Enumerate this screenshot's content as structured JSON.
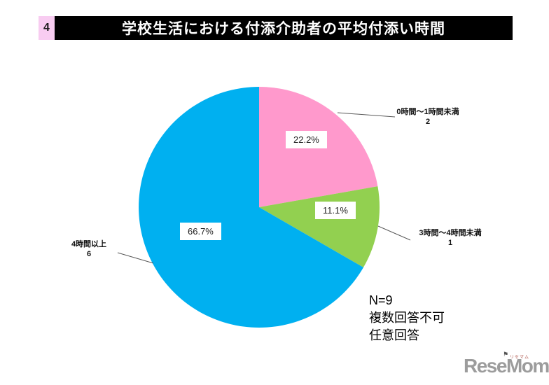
{
  "page": {
    "slide_number": "4",
    "title": "学校生活における付添介助者の平均付添い時間"
  },
  "colors": {
    "title_bar_bg": "#000000",
    "title_bar_text": "#ffffff",
    "number_box_bg": "#f8ccf1",
    "slice_pink": "#ff99cc",
    "slice_green": "#92d050",
    "slice_blue": "#00b0f0",
    "logo_gray": "#9c9c9c"
  },
  "chart_data": {
    "type": "pie",
    "title": "学校生活における付添介助者の平均付添い時間",
    "direction": "clockwise",
    "start_angle_deg": -90,
    "legend_position": "callout-labels",
    "total": 9,
    "slices": [
      {
        "label": "0時間～1時間未満",
        "value": 2,
        "percent": 22.2,
        "percent_label": "22.2%",
        "color": "#ff99cc"
      },
      {
        "label": "3時間～4時間未満",
        "value": 1,
        "percent": 11.1,
        "percent_label": "11.1%",
        "color": "#92d050"
      },
      {
        "label": "4時間以上",
        "value": 6,
        "percent": 66.7,
        "percent_label": "66.7%",
        "color": "#00b0f0"
      }
    ]
  },
  "notes": {
    "n_label": "N=9",
    "line2": "複数回答不可",
    "line3": "任意回答"
  },
  "logo": {
    "text": "ReseMom.",
    "ruby": "リセマム"
  }
}
